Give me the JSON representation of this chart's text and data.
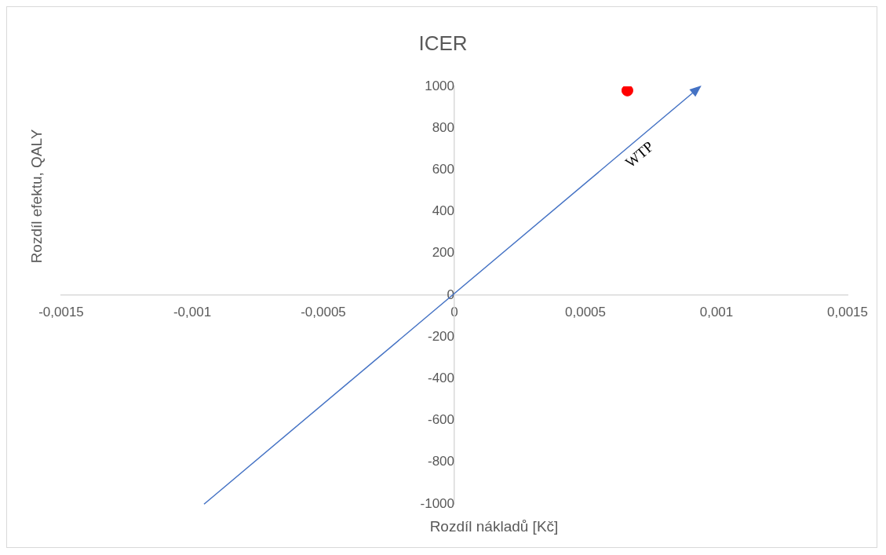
{
  "chart_data": {
    "type": "scatter",
    "title": "ICER",
    "xlabel": "Rozdíl nákladů [Kč]",
    "ylabel": "Rozdíl efektu, QALY",
    "xlim": [
      -0.0015,
      0.0015
    ],
    "xticks": [
      {
        "value": -0.0015,
        "label": "-0,0015"
      },
      {
        "value": -0.001,
        "label": "-0,001"
      },
      {
        "value": -0.0005,
        "label": "-0,0005"
      },
      0,
      {
        "value": 0.0005,
        "label": "0,0005"
      },
      {
        "value": 0.001,
        "label": "0,001"
      },
      {
        "value": 0.0015,
        "label": "0,0015"
      }
    ],
    "ylim": [
      -1000,
      1000
    ],
    "yticks": [
      -1000,
      -800,
      -600,
      -400,
      -200,
      0,
      200,
      400,
      600,
      800,
      1000
    ],
    "grid": false,
    "legend": false,
    "marker": "circle",
    "annotations": [
      "WTP"
    ],
    "series": [
      {
        "color": "#ff0000",
        "x": [
          0.00066
        ],
        "values": [
          980
        ]
      }
    ]
  }
}
